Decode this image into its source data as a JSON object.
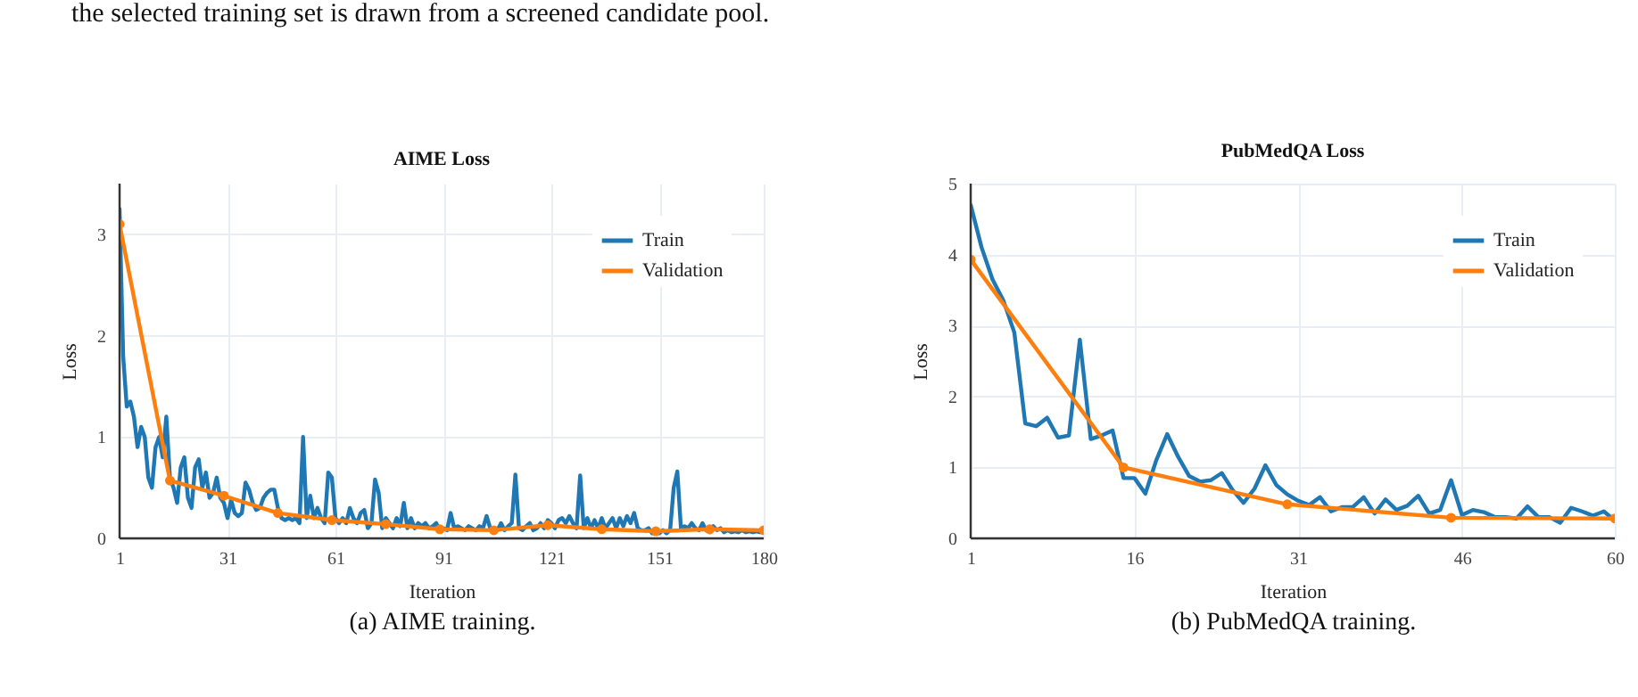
{
  "chart_data": [
    {
      "type": "line",
      "title": "AIME Loss",
      "xlabel": "Iteration",
      "ylabel": "Loss",
      "annotations": [
        "the selected training set is drawn from a screened candidate pool.",
        "(a) AIME training."
      ],
      "xlim": [
        1,
        180
      ],
      "xticks": [
        1,
        31,
        61,
        91,
        121,
        151,
        180
      ],
      "ylim": [
        0,
        3.5
      ],
      "yticks": [
        0,
        1,
        2,
        3
      ],
      "grid": true,
      "legend": "top right",
      "line_style": "solid",
      "series": [
        {
          "name": "Train",
          "color": "#1f77b4",
          "marker": "none",
          "x": [
            1,
            2,
            3,
            4,
            5,
            6,
            7,
            8,
            9,
            10,
            11,
            12,
            13,
            14,
            15,
            16,
            17,
            18,
            19,
            20,
            21,
            22,
            23,
            24,
            25,
            26,
            27,
            28,
            29,
            30,
            31,
            32,
            33,
            34,
            35,
            36,
            37,
            38,
            39,
            40,
            41,
            42,
            43,
            44,
            45,
            46,
            47,
            48,
            49,
            50,
            51,
            52,
            53,
            54,
            55,
            56,
            57,
            58,
            59,
            60,
            61,
            62,
            63,
            64,
            65,
            66,
            67,
            68,
            69,
            70,
            71,
            72,
            73,
            74,
            75,
            76,
            77,
            78,
            79,
            80,
            81,
            82,
            83,
            84,
            85,
            86,
            87,
            88,
            89,
            90,
            91,
            92,
            93,
            94,
            95,
            96,
            97,
            98,
            99,
            100,
            101,
            102,
            103,
            104,
            105,
            106,
            107,
            108,
            109,
            110,
            111,
            112,
            113,
            114,
            115,
            116,
            117,
            118,
            119,
            120,
            121,
            122,
            123,
            124,
            125,
            126,
            127,
            128,
            129,
            130,
            131,
            132,
            133,
            134,
            135,
            136,
            137,
            138,
            139,
            140,
            141,
            142,
            143,
            144,
            145,
            146,
            147,
            148,
            149,
            150,
            151,
            152,
            153,
            154,
            155,
            156,
            157,
            158,
            159,
            160,
            161,
            162,
            163,
            164,
            165,
            166,
            167,
            168,
            169,
            170,
            171,
            172,
            173,
            174,
            175,
            176,
            177,
            178,
            179,
            180
          ],
          "values": [
            3.25,
            1.8,
            1.3,
            1.35,
            1.2,
            0.9,
            1.1,
            1.0,
            0.6,
            0.5,
            0.9,
            1.0,
            0.8,
            1.2,
            0.6,
            0.5,
            0.35,
            0.7,
            0.8,
            0.4,
            0.3,
            0.7,
            0.78,
            0.5,
            0.65,
            0.4,
            0.45,
            0.6,
            0.4,
            0.35,
            0.2,
            0.38,
            0.25,
            0.22,
            0.25,
            0.55,
            0.48,
            0.35,
            0.28,
            0.3,
            0.4,
            0.45,
            0.48,
            0.48,
            0.3,
            0.2,
            0.18,
            0.2,
            0.18,
            0.2,
            0.15,
            1.0,
            0.2,
            0.42,
            0.2,
            0.3,
            0.2,
            0.15,
            0.65,
            0.6,
            0.2,
            0.15,
            0.2,
            0.15,
            0.3,
            0.2,
            0.15,
            0.25,
            0.28,
            0.1,
            0.15,
            0.58,
            0.45,
            0.1,
            0.2,
            0.15,
            0.1,
            0.2,
            0.12,
            0.35,
            0.1,
            0.2,
            0.1,
            0.15,
            0.12,
            0.15,
            0.1,
            0.12,
            0.15,
            0.08,
            0.1,
            0.08,
            0.25,
            0.1,
            0.12,
            0.1,
            0.08,
            0.12,
            0.1,
            0.08,
            0.12,
            0.1,
            0.22,
            0.1,
            0.08,
            0.08,
            0.15,
            0.08,
            0.12,
            0.15,
            0.63,
            0.1,
            0.08,
            0.12,
            0.15,
            0.08,
            0.1,
            0.15,
            0.1,
            0.18,
            0.15,
            0.1,
            0.18,
            0.2,
            0.15,
            0.22,
            0.15,
            0.1,
            0.62,
            0.1,
            0.2,
            0.1,
            0.18,
            0.1,
            0.2,
            0.1,
            0.15,
            0.2,
            0.1,
            0.2,
            0.12,
            0.22,
            0.15,
            0.25,
            0.1,
            0.08,
            0.08,
            0.1,
            0.05,
            0.08,
            0.05,
            0.08,
            0.05,
            0.08,
            0.5,
            0.66,
            0.1,
            0.12,
            0.1,
            0.15,
            0.1,
            0.08,
            0.15,
            0.08,
            0.06,
            0.12,
            0.08,
            0.1,
            0.06,
            0.08,
            0.06,
            0.07,
            0.06,
            0.08,
            0.06,
            0.07,
            0.06,
            0.07,
            0.06,
            0.07
          ]
        },
        {
          "name": "Validation",
          "color": "#ff7f0e",
          "marker": "circle",
          "x": [
            1,
            15,
            30,
            45,
            60,
            75,
            90,
            105,
            120,
            135,
            150,
            165,
            180
          ],
          "values": [
            3.1,
            0.57,
            0.42,
            0.25,
            0.18,
            0.14,
            0.09,
            0.08,
            0.13,
            0.09,
            0.07,
            0.09,
            0.08
          ]
        }
      ]
    },
    {
      "type": "line",
      "title": "PubMedQA Loss",
      "xlabel": "Iteration",
      "ylabel": "Loss",
      "annotations": [
        "(b) PubMedQA training."
      ],
      "xlim": [
        1,
        60
      ],
      "xticks": [
        1,
        16,
        31,
        46,
        60
      ],
      "ylim": [
        0,
        5
      ],
      "yticks": [
        0,
        1,
        2,
        3,
        4,
        5
      ],
      "grid": true,
      "legend": "top right",
      "line_style": "solid",
      "series": [
        {
          "name": "Train",
          "color": "#1f77b4",
          "marker": "none",
          "x": [
            1,
            2,
            3,
            4,
            5,
            6,
            7,
            8,
            9,
            10,
            11,
            12,
            13,
            14,
            15,
            16,
            17,
            18,
            19,
            20,
            21,
            22,
            23,
            24,
            25,
            26,
            27,
            28,
            29,
            30,
            31,
            32,
            33,
            34,
            35,
            36,
            37,
            38,
            39,
            40,
            41,
            42,
            43,
            44,
            45,
            46,
            47,
            48,
            49,
            50,
            51,
            52,
            53,
            54,
            55,
            56,
            57,
            58,
            59,
            60
          ],
          "values": [
            4.7,
            4.1,
            3.65,
            3.35,
            2.9,
            1.62,
            1.58,
            1.7,
            1.42,
            1.45,
            2.8,
            1.4,
            1.45,
            1.52,
            0.85,
            0.85,
            0.63,
            1.1,
            1.47,
            1.15,
            0.88,
            0.8,
            0.82,
            0.92,
            0.68,
            0.5,
            0.7,
            1.03,
            0.75,
            0.62,
            0.53,
            0.47,
            0.58,
            0.38,
            0.44,
            0.44,
            0.58,
            0.35,
            0.55,
            0.4,
            0.46,
            0.6,
            0.35,
            0.4,
            0.82,
            0.33,
            0.4,
            0.37,
            0.3,
            0.3,
            0.28,
            0.45,
            0.3,
            0.3,
            0.22,
            0.43,
            0.38,
            0.32,
            0.38,
            0.25
          ]
        },
        {
          "name": "Validation",
          "color": "#ff7f0e",
          "marker": "circle",
          "x": [
            1,
            15,
            30,
            45,
            60
          ],
          "values": [
            3.93,
            1.0,
            0.48,
            0.29,
            0.28
          ]
        }
      ]
    }
  ]
}
